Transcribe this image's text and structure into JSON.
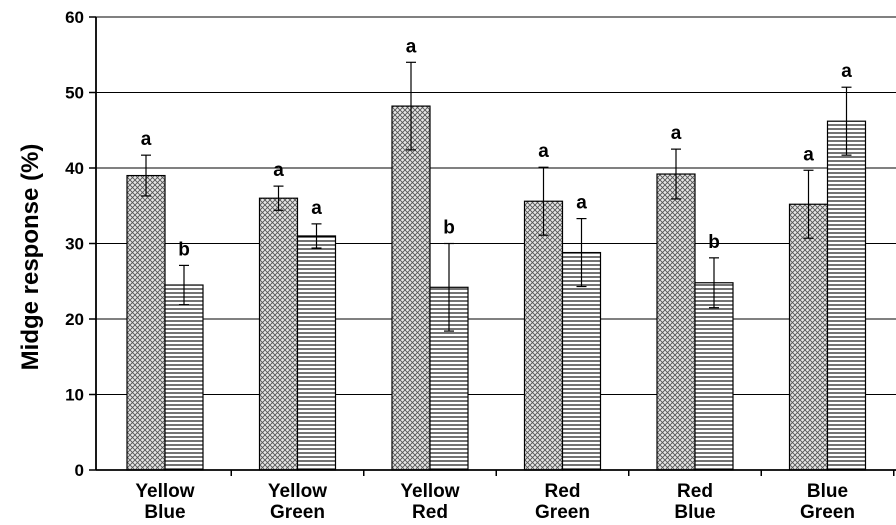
{
  "chart_data": {
    "type": "bar",
    "title": "",
    "xlabel": "",
    "ylabel": "Midge response (%)",
    "ylim": [
      0,
      60
    ],
    "yticks": [
      0,
      10,
      20,
      30,
      40,
      50,
      60
    ],
    "grid": true,
    "legend": "none",
    "categories": [
      [
        "Yellow",
        "Blue"
      ],
      [
        "Yellow",
        "Green"
      ],
      [
        "Yellow",
        "Red"
      ],
      [
        "Red",
        "Green"
      ],
      [
        "Red",
        "Blue"
      ],
      [
        "Blue",
        "Green"
      ]
    ],
    "series": [
      {
        "pattern": "crosshatch",
        "values": [
          39,
          36,
          48.2,
          35.6,
          39.2,
          35.2
        ],
        "error": [
          2.7,
          1.6,
          5.8,
          4.5,
          3.3,
          4.5
        ],
        "significance": [
          "a",
          "a",
          "a",
          "a",
          "a",
          "a"
        ]
      },
      {
        "pattern": "horizontal-lines",
        "values": [
          24.5,
          31,
          24.2,
          28.8,
          24.8,
          46.2
        ],
        "error": [
          2.6,
          1.6,
          5.8,
          4.5,
          3.3,
          4.5
        ],
        "significance": [
          "b",
          "a",
          "b",
          "a",
          "b",
          "a"
        ]
      }
    ]
  }
}
